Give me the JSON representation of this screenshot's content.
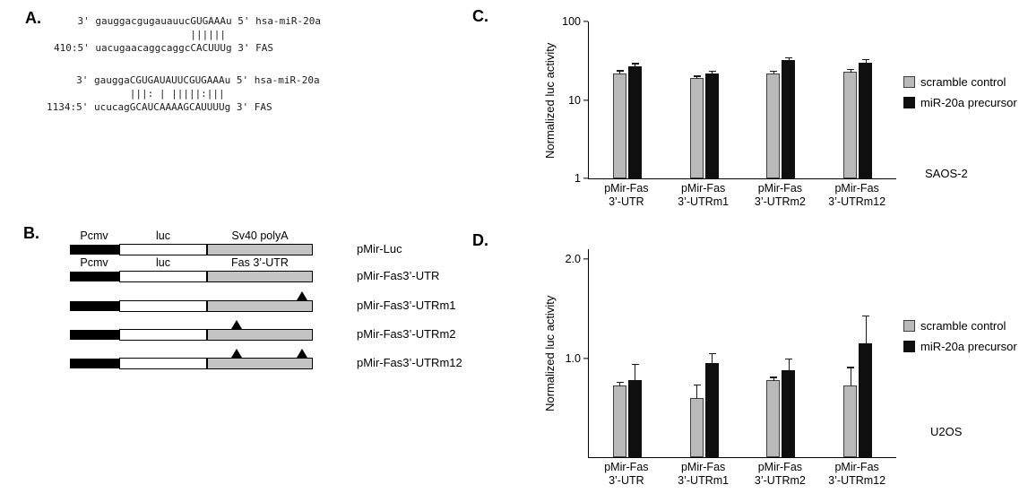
{
  "panels": {
    "a": {
      "label": "A.",
      "alignments": [
        {
          "lines": [
            "    3' gauggacgugauauucGUGAAAu 5' hsa-miR-20a",
            "                       ||||||",
            "410:5' uacugaacaggcaggcCACUUUg 3' FAS"
          ]
        },
        {
          "lines": [
            "     3' gauggaCGUGAUAUUCGUGAAAu 5' hsa-miR-20a",
            "              |||: | |||||:|||",
            "1134:5' ucucagGCAUCAAAAGCAUUUUg 3' FAS"
          ]
        }
      ]
    },
    "b": {
      "label": "B.",
      "rows": [
        {
          "name": "pMir-Luc",
          "box_labels": [
            "Pcmv",
            "luc",
            "Sv40 polyA"
          ],
          "triangles": []
        },
        {
          "name": "pMir-Fas3’-UTR",
          "box_labels": [
            "Pcmv",
            "luc",
            "Fas 3’-UTR"
          ],
          "triangles": []
        },
        {
          "name": "pMir-Fas3’-UTRm1",
          "box_labels": [],
          "triangles": [
            0.9
          ]
        },
        {
          "name": "pMir-Fas3’-UTRm2",
          "box_labels": [],
          "triangles": [
            0.28
          ]
        },
        {
          "name": "pMir-Fas3’-UTRm12",
          "box_labels": [],
          "triangles": [
            0.28,
            0.9
          ]
        }
      ]
    },
    "c": {
      "label": "C."
    },
    "d": {
      "label": "D."
    }
  },
  "chart_data": [
    {
      "type": "bar",
      "scale": "log",
      "cell_line": "SAOS-2",
      "title": "",
      "xlabel": "",
      "ylabel": "Normalized luc activity",
      "ylim": [
        1,
        100
      ],
      "yticks": [
        {
          "v": 1,
          "label": "1"
        },
        {
          "v": 10,
          "label": "10"
        },
        {
          "v": 100,
          "label": "100"
        }
      ],
      "legend_position": "right",
      "categories": [
        [
          "pMir-Fas",
          "3’-UTR"
        ],
        [
          "pMir-Fas",
          "3’-UTRm1"
        ],
        [
          "pMir-Fas",
          "3’-UTRm2"
        ],
        [
          "pMir-Fas",
          "3’-UTRm12"
        ]
      ],
      "series": [
        {
          "name": "scramble control",
          "color": "#b9b9b9",
          "edge": "#3f3f3f",
          "values": [
            22,
            19,
            22,
            23
          ],
          "errors": [
            2.5,
            2,
            2,
            2.5
          ]
        },
        {
          "name": "miR-20a precursor",
          "color": "#0f0f0f",
          "edge": "#0f0f0f",
          "values": [
            27,
            22,
            32,
            30
          ],
          "errors": [
            2.5,
            1.5,
            3,
            3
          ]
        }
      ]
    },
    {
      "type": "bar",
      "scale": "linear",
      "cell_line": "U2OS",
      "title": "",
      "xlabel": "",
      "ylabel": "Normalized luc activity",
      "ylim": [
        0,
        2.1
      ],
      "yticks": [
        {
          "v": 1,
          "label": "1.0"
        },
        {
          "v": 2,
          "label": "2.0"
        }
      ],
      "legend_position": "right",
      "categories": [
        [
          "pMir-Fas",
          "3’-UTR"
        ],
        [
          "pMir-Fas",
          "3’-UTRm1"
        ],
        [
          "pMir-Fas",
          "3’-UTRm2"
        ],
        [
          "pMir-Fas",
          "3’-UTRm12"
        ]
      ],
      "series": [
        {
          "name": "scramble control",
          "color": "#b9b9b9",
          "edge": "#3f3f3f",
          "values": [
            0.72,
            0.6,
            0.78,
            0.72
          ],
          "errors": [
            0.05,
            0.14,
            0.04,
            0.2
          ]
        },
        {
          "name": "miR-20a precursor",
          "color": "#0f0f0f",
          "edge": "#0f0f0f",
          "values": [
            0.78,
            0.95,
            0.88,
            1.15
          ],
          "errors": [
            0.16,
            0.1,
            0.12,
            0.28
          ]
        }
      ]
    }
  ]
}
